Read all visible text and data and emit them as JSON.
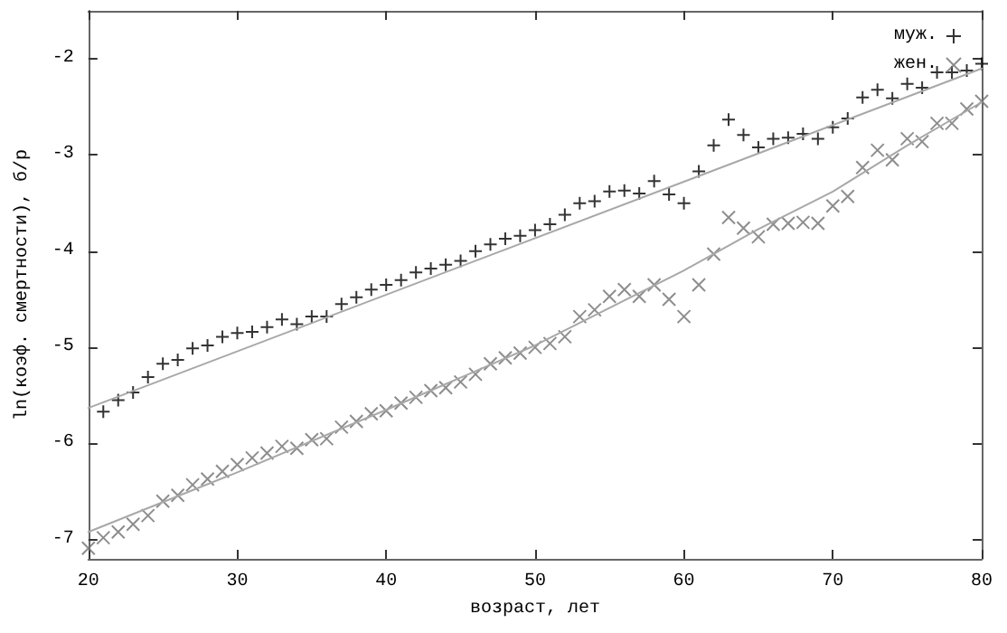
{
  "chart_data": {
    "type": "scatter",
    "xlabel": "возраст, лет",
    "ylabel": "ln(коэф. смертности), б/р",
    "xlim": [
      20,
      80
    ],
    "xticks": [
      20,
      30,
      40,
      50,
      60,
      70,
      80
    ],
    "ylim": [
      -7.2,
      -1.5
    ],
    "yticks": [
      -7,
      -6,
      -5,
      -4,
      -3,
      -2
    ],
    "grid": false,
    "legend": "top right",
    "series": [
      {
        "name": "муж.",
        "color": "#000000",
        "marker": "plus",
        "x": [
          21,
          22,
          23,
          24,
          25,
          26,
          27,
          28,
          29,
          30,
          31,
          32,
          33,
          34,
          35,
          36,
          37,
          38,
          39,
          40,
          41,
          42,
          43,
          44,
          45,
          46,
          47,
          48,
          49,
          50,
          51,
          52,
          53,
          54,
          55,
          56,
          57,
          58,
          59,
          60,
          61,
          62,
          63,
          64,
          65,
          66,
          67,
          68,
          69,
          70,
          71,
          72,
          73,
          74,
          75,
          76,
          77,
          78,
          79,
          80
        ],
        "values": [
          -5.67,
          -5.55,
          -5.47,
          -5.31,
          -5.17,
          -5.13,
          -5.01,
          -4.98,
          -4.89,
          -4.85,
          -4.84,
          -4.79,
          -4.71,
          -4.76,
          -4.68,
          -4.68,
          -4.55,
          -4.48,
          -4.4,
          -4.35,
          -4.3,
          -4.22,
          -4.18,
          -4.14,
          -4.1,
          -4.0,
          -3.93,
          -3.87,
          -3.84,
          -3.78,
          -3.72,
          -3.62,
          -3.5,
          -3.48,
          -3.38,
          -3.37,
          -3.4,
          -3.27,
          -3.41,
          -3.5,
          -3.17,
          -2.9,
          -2.63,
          -2.79,
          -2.92,
          -2.83,
          -2.82,
          -2.78,
          -2.83,
          -2.71,
          -2.62,
          -2.4,
          -2.32,
          -2.41,
          -2.26,
          -2.3,
          -2.14,
          -2.14,
          -2.12,
          -2.05
        ]
      },
      {
        "name": "жен.",
        "color": "#707070",
        "marker": "cross",
        "x": [
          20,
          21,
          22,
          23,
          24,
          25,
          26,
          27,
          28,
          29,
          30,
          31,
          32,
          33,
          34,
          35,
          36,
          37,
          38,
          39,
          40,
          41,
          42,
          43,
          44,
          45,
          46,
          47,
          48,
          49,
          50,
          51,
          52,
          53,
          54,
          55,
          56,
          57,
          58,
          59,
          60,
          61,
          62,
          63,
          64,
          65,
          66,
          67,
          68,
          69,
          70,
          71,
          72,
          73,
          74,
          75,
          76,
          77,
          78,
          79,
          80
        ],
        "values": [
          -7.09,
          -6.98,
          -6.92,
          -6.84,
          -6.75,
          -6.6,
          -6.54,
          -6.43,
          -6.37,
          -6.29,
          -6.22,
          -6.15,
          -6.1,
          -6.03,
          -6.05,
          -5.96,
          -5.95,
          -5.83,
          -5.77,
          -5.69,
          -5.66,
          -5.58,
          -5.52,
          -5.45,
          -5.42,
          -5.36,
          -5.28,
          -5.17,
          -5.11,
          -5.06,
          -5.0,
          -4.96,
          -4.89,
          -4.68,
          -4.61,
          -4.47,
          -4.4,
          -4.47,
          -4.35,
          -4.5,
          -4.68,
          -4.35,
          -4.03,
          -3.65,
          -3.76,
          -3.85,
          -3.72,
          -3.71,
          -3.7,
          -3.71,
          -3.53,
          -3.43,
          -3.13,
          -2.95,
          -3.05,
          -2.83,
          -2.86,
          -2.67,
          -2.67,
          -2.52,
          -2.44
        ]
      },
      {
        "type": "line",
        "color": "#a8a8a8",
        "x": [
          20,
          80
        ],
        "values": [
          -5.63,
          -2.1
        ]
      },
      {
        "type": "line",
        "color": "#a8a8a8",
        "x": [
          20,
          30,
          40,
          50,
          60,
          65,
          70,
          75,
          80
        ],
        "values": [
          -6.92,
          -6.3,
          -5.65,
          -4.98,
          -4.2,
          -3.77,
          -3.38,
          -2.9,
          -2.45
        ]
      }
    ]
  }
}
